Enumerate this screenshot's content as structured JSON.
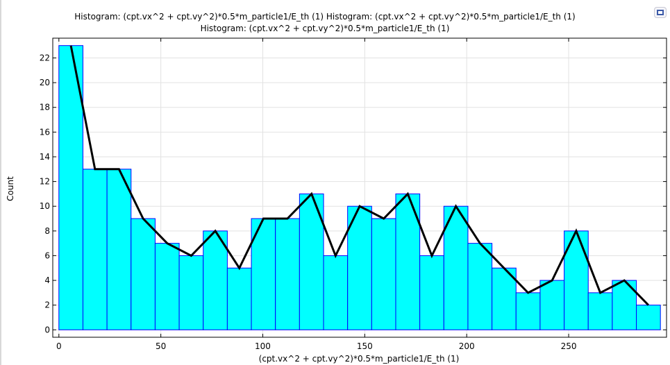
{
  "title": {
    "line1": "Histogram: (cpt.vx^2 + cpt.vy^2)*0.5*m_particle1/E_th (1)  Histogram: (cpt.vx^2 + cpt.vy^2)*0.5*m_particle1/E_th (1)",
    "line2": "Histogram: (cpt.vx^2 + cpt.vy^2)*0.5*m_particle1/E_th (1)"
  },
  "toolbar": {
    "corner_icon": "graph-options-icon"
  },
  "chart_data": {
    "type": "bar",
    "xlabel": "(cpt.vx^2 + cpt.vy^2)*0.5*m_particle1/E_th (1)",
    "ylabel": "Count",
    "xlim": [
      -3,
      298
    ],
    "ylim": [
      -0.6,
      23.6
    ],
    "grid": true,
    "x_ticks": [
      0,
      50,
      100,
      150,
      200,
      250
    ],
    "y_ticks": [
      0,
      2,
      4,
      6,
      8,
      10,
      12,
      14,
      16,
      18,
      20,
      22
    ],
    "bin_edges": [
      0,
      11.8,
      23.6,
      35.4,
      47.2,
      59,
      70.8,
      82.6,
      94.4,
      106.2,
      118,
      129.8,
      141.6,
      153.4,
      165.2,
      177,
      188.8,
      200.6,
      212.4,
      224.2,
      236,
      247.8,
      259.6,
      271.4,
      283.2,
      295
    ],
    "values": [
      23,
      13,
      13,
      9,
      7,
      6,
      8,
      5,
      9,
      9,
      11,
      6,
      10,
      9,
      11,
      6,
      10,
      7,
      5,
      3,
      4,
      8,
      3,
      4,
      2
    ],
    "bar_fill": "#00ffff",
    "bar_edge": "#0000ff",
    "line_color": "#000000"
  }
}
